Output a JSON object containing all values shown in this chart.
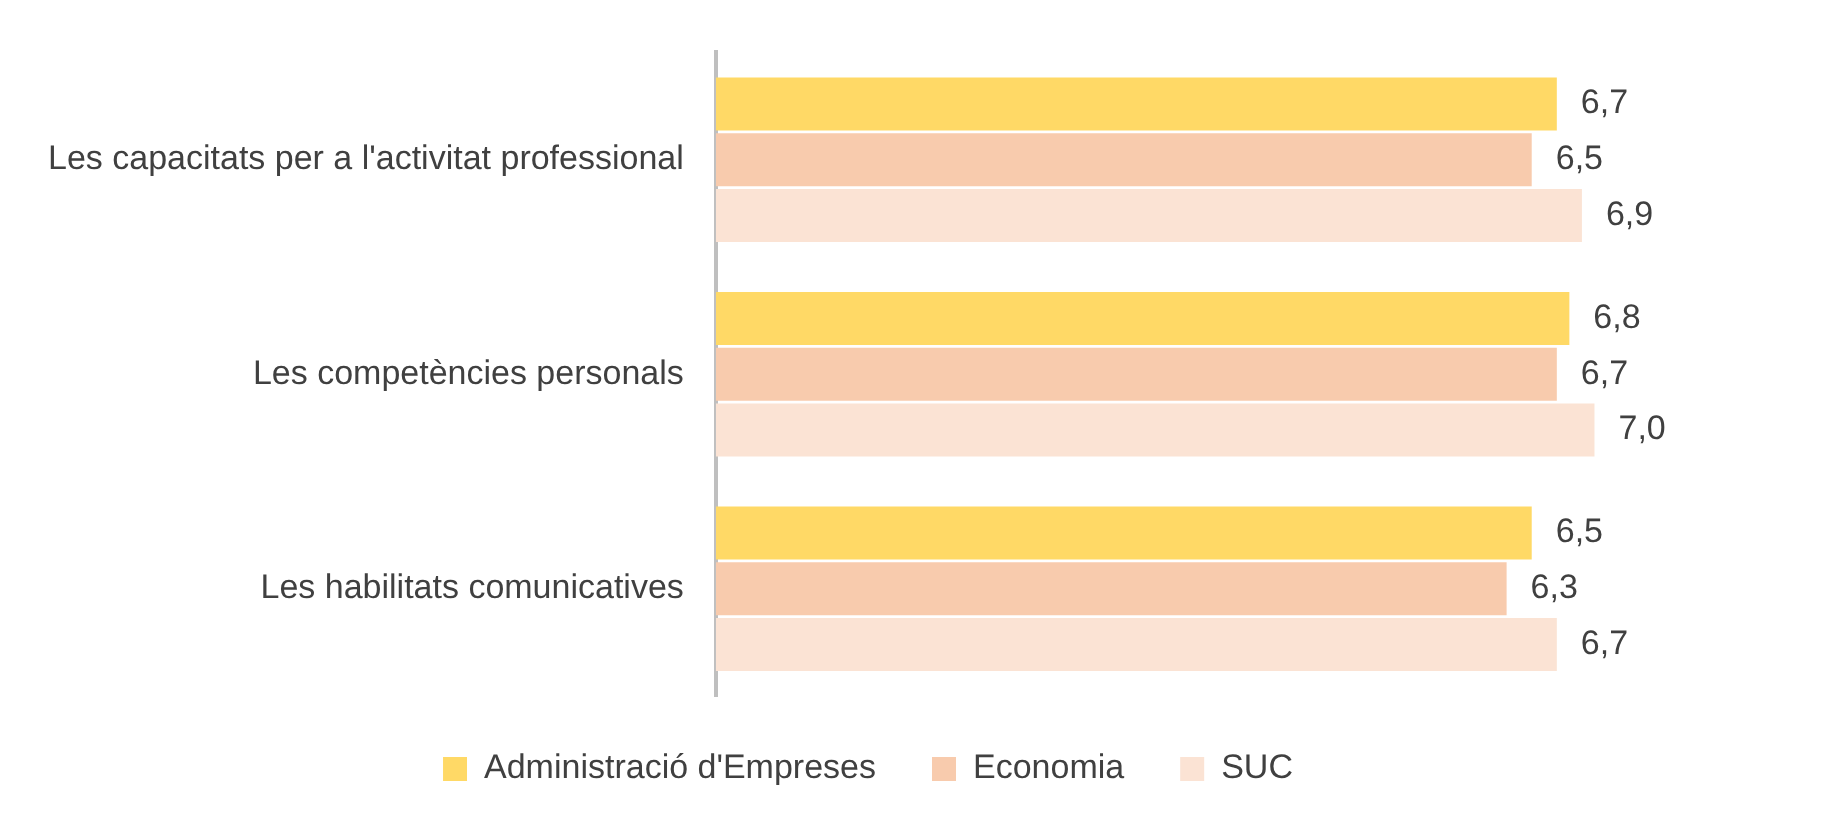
{
  "chart_data": {
    "type": "bar",
    "orientation": "horizontal",
    "categories": [
      "Les capacitats per a l'activitat professional",
      "Les competències personals",
      "Les habilitats comunicatives"
    ],
    "series": [
      {
        "name": "Administració d'Empreses",
        "color": "#ffd966",
        "values": [
          6.7,
          6.8,
          6.5
        ],
        "value_labels": [
          "6,7",
          "6,8",
          "6,5"
        ]
      },
      {
        "name": "Economia",
        "color": "#f8cbad",
        "values": [
          6.5,
          6.7,
          6.3
        ],
        "value_labels": [
          "6,5",
          "6,7",
          "6,3"
        ]
      },
      {
        "name": "SUC",
        "color": "#fbe3d4",
        "values": [
          6.9,
          7.0,
          6.7
        ],
        "value_labels": [
          "6,9",
          "7,0",
          "6,7"
        ]
      }
    ],
    "legend": "bottom",
    "tick_labels": "y"
  }
}
